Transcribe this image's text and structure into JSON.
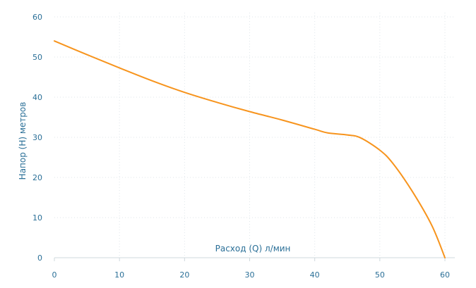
{
  "chart_data": {
    "type": "line",
    "title": "",
    "xlabel": "Расход (Q) л/мин",
    "ylabel": "Напор (Н) метров",
    "xlim": [
      0,
      60
    ],
    "ylim": [
      0,
      60
    ],
    "x_ticks": [
      "0",
      "10",
      "20",
      "30",
      "40",
      "50",
      "60"
    ],
    "y_ticks": [
      "0",
      "10",
      "20",
      "30",
      "40",
      "50",
      "60"
    ],
    "grid": true,
    "series": [
      {
        "name": "",
        "color": "#f7941d",
        "x": [
          0,
          5,
          10,
          15,
          20,
          25,
          30,
          35,
          40,
          42,
          45,
          47,
          50,
          52,
          55,
          58,
          60
        ],
        "y": [
          54,
          50.6,
          47.3,
          44.1,
          41.2,
          38.7,
          36.4,
          34.3,
          32,
          31.1,
          30.6,
          29.9,
          26.8,
          23.5,
          16.5,
          8,
          0
        ]
      }
    ]
  }
}
